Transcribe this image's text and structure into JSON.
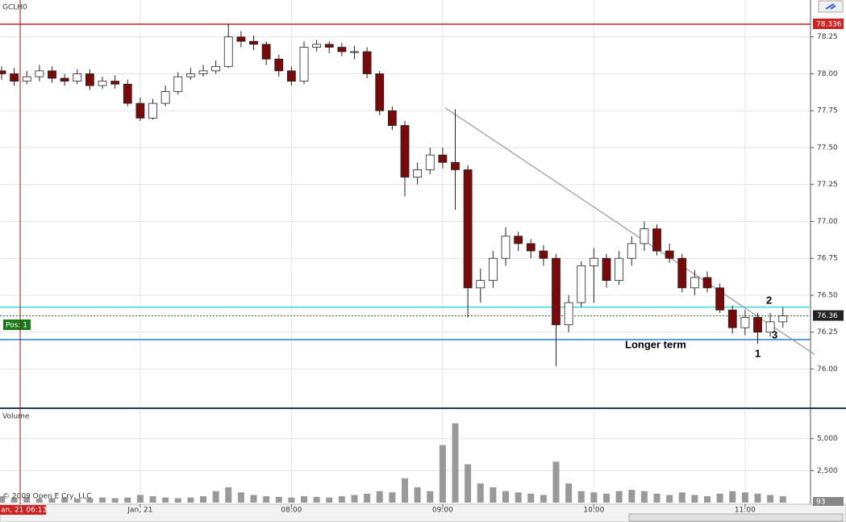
{
  "chart_data": {
    "type": "candlestick",
    "title": "GCLH0",
    "volume_title": "Volume",
    "copyright": "© 2009 Open E Cry, LLC",
    "position_label": "Pos: 1",
    "cursor_time": "an, 21 06:13",
    "categories": [
      null,
      null,
      null,
      null,
      null,
      null,
      null,
      null,
      null,
      null,
      null,
      "Jan, 21",
      null,
      null,
      null,
      null,
      null,
      null,
      null,
      null,
      null,
      null,
      null,
      "08:00",
      null,
      null,
      null,
      null,
      null,
      null,
      null,
      null,
      null,
      null,
      null,
      "09:00",
      null,
      null,
      null,
      null,
      null,
      null,
      null,
      null,
      null,
      null,
      null,
      "10:00",
      null,
      null,
      null,
      null,
      null,
      null,
      null,
      null,
      null,
      null,
      null,
      "11:00",
      null,
      null,
      null
    ],
    "open": [
      78.02,
      78.0,
      77.95,
      77.98,
      78.02,
      77.97,
      77.95,
      78.0,
      77.92,
      77.95,
      77.93,
      77.8,
      77.7,
      77.8,
      77.88,
      77.98,
      78.0,
      78.02,
      78.05,
      78.25,
      78.22,
      78.2,
      78.1,
      78.02,
      77.95,
      78.18,
      78.2,
      78.18,
      78.15,
      78.15,
      78.0,
      77.75,
      77.65,
      77.3,
      77.35,
      77.45,
      77.4,
      77.35,
      76.55,
      76.6,
      76.75,
      76.9,
      76.85,
      76.8,
      76.75,
      76.3,
      76.45,
      76.7,
      76.75,
      76.6,
      76.75,
      76.85,
      76.95,
      76.8,
      76.75,
      76.55,
      76.62,
      76.55,
      76.4,
      76.28,
      76.35,
      76.25,
      76.32
    ],
    "high": [
      78.05,
      78.04,
      78.02,
      78.06,
      78.05,
      78.0,
      78.03,
      78.03,
      77.98,
      77.99,
      77.96,
      77.84,
      77.83,
      77.92,
      78.01,
      78.04,
      78.06,
      78.09,
      78.34,
      78.29,
      78.26,
      78.22,
      78.13,
      78.05,
      78.22,
      78.23,
      78.22,
      78.21,
      78.19,
      78.18,
      78.02,
      77.78,
      77.68,
      77.4,
      77.5,
      77.5,
      77.76,
      77.38,
      76.68,
      76.8,
      76.96,
      76.93,
      76.88,
      76.84,
      76.78,
      76.5,
      76.73,
      76.82,
      76.78,
      76.8,
      76.9,
      77.0,
      76.98,
      76.85,
      76.78,
      76.67,
      76.66,
      76.58,
      76.43,
      76.4,
      76.38,
      76.38,
      76.42
    ],
    "low": [
      77.96,
      77.92,
      77.93,
      77.95,
      77.94,
      77.92,
      77.93,
      77.89,
      77.9,
      77.9,
      77.78,
      77.68,
      77.69,
      77.78,
      77.86,
      77.96,
      77.98,
      78.0,
      78.04,
      78.18,
      78.16,
      78.06,
      77.98,
      77.92,
      77.93,
      78.15,
      78.14,
      78.12,
      78.1,
      77.97,
      77.72,
      77.62,
      77.17,
      77.25,
      77.32,
      77.36,
      77.08,
      76.35,
      76.45,
      76.55,
      76.7,
      76.8,
      76.75,
      76.7,
      76.02,
      76.25,
      76.42,
      76.45,
      76.55,
      76.57,
      76.7,
      76.8,
      76.77,
      76.72,
      76.52,
      76.5,
      76.52,
      76.38,
      76.24,
      76.23,
      76.17,
      76.22,
      76.28
    ],
    "close": [
      78.0,
      77.95,
      77.98,
      78.02,
      77.97,
      77.95,
      78.0,
      77.92,
      77.95,
      77.93,
      77.8,
      77.7,
      77.8,
      77.88,
      77.98,
      78.0,
      78.02,
      78.05,
      78.25,
      78.22,
      78.2,
      78.1,
      78.02,
      77.95,
      78.18,
      78.2,
      78.18,
      78.15,
      78.15,
      78.0,
      77.75,
      77.65,
      77.3,
      77.35,
      77.45,
      77.4,
      77.35,
      76.55,
      76.6,
      76.75,
      76.9,
      76.85,
      76.8,
      76.75,
      76.3,
      76.45,
      76.7,
      76.75,
      76.6,
      76.75,
      76.85,
      76.95,
      76.8,
      76.75,
      76.55,
      76.62,
      76.55,
      76.4,
      76.28,
      76.35,
      76.25,
      76.32,
      76.36
    ],
    "volume": [
      500,
      400,
      450,
      300,
      350,
      400,
      300,
      350,
      400,
      350,
      400,
      600,
      500,
      400,
      350,
      400,
      500,
      900,
      1200,
      800,
      600,
      500,
      450,
      400,
      500,
      450,
      400,
      500,
      600,
      700,
      900,
      800,
      1900,
      1200,
      900,
      4500,
      6200,
      3000,
      1500,
      1200,
      900,
      800,
      700,
      600,
      3200,
      1500,
      900,
      800,
      700,
      900,
      1000,
      900,
      700,
      600,
      800,
      600,
      500,
      700,
      900,
      800,
      700,
      600,
      500
    ],
    "up_color": "#ffffff",
    "down_color": "#7a0a0a",
    "volume_color": "#999999",
    "ylim": [
      75.74,
      78.5
    ],
    "yticks": [
      {
        "value": 76,
        "label": "76.00"
      },
      76.25,
      {
        "value": 76.5,
        "label": "76.50"
      },
      76.75,
      {
        "value": 77,
        "label": "77.00"
      },
      77.25,
      {
        "value": 77.5,
        "label": "77.50"
      },
      77.75,
      {
        "value": 78,
        "label": "78.00"
      },
      78.25
    ],
    "volume_ylim": [
      0,
      7250
    ],
    "volume_yticks": [
      {
        "value": 2500,
        "label": "2,500"
      },
      {
        "value": 5000,
        "label": "5,000"
      }
    ],
    "grid": true,
    "hlines": [
      {
        "value": 78.336,
        "color": "#cc2222"
      },
      {
        "value": 76.42,
        "color": "#33dddd"
      },
      {
        "value": 76.2,
        "color": "#2a7de1"
      }
    ],
    "last_price": 76.36,
    "current_volume": 93,
    "trendline": {
      "start": [
        35.2,
        77.77
      ],
      "end": [
        64.5,
        76.1
      ],
      "color": "#999999"
    },
    "annotations": [
      "Longer term",
      "1",
      "2",
      "3"
    ]
  }
}
